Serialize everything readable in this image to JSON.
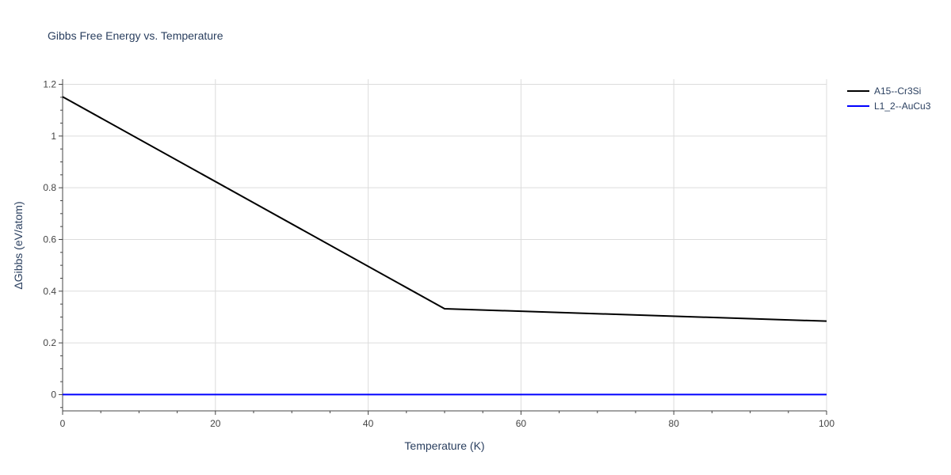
{
  "chart_data": {
    "type": "line",
    "title": "Gibbs Free Energy vs. Temperature",
    "xlabel": "Temperature (K)",
    "ylabel": "ΔGibbs (eV/atom)",
    "xlim": [
      0,
      100
    ],
    "ylim": [
      -0.063,
      1.22
    ],
    "x_ticks": [
      0,
      20,
      40,
      60,
      80,
      100
    ],
    "x_minor_ticks": [
      5,
      10,
      15,
      25,
      30,
      35,
      45,
      50,
      55,
      65,
      70,
      75,
      85,
      90,
      95
    ],
    "y_ticks": [
      0,
      0.2,
      0.4,
      0.6,
      0.8,
      1,
      1.2
    ],
    "y_minor_ticks": [
      -0.05,
      0.05,
      0.1,
      0.15,
      0.25,
      0.3,
      0.35,
      0.45,
      0.5,
      0.55,
      0.65,
      0.7,
      0.75,
      0.85,
      0.9,
      0.95,
      1.05,
      1.1,
      1.15
    ],
    "grid": true,
    "legend_position": "top-right",
    "series": [
      {
        "name": "A15--Cr3Si",
        "color": "#000000",
        "x": [
          0,
          50,
          100
        ],
        "y": [
          1.152,
          0.332,
          0.284
        ]
      },
      {
        "name": "L1_2--AuCu3",
        "color": "#0000ff",
        "x": [
          0,
          100
        ],
        "y": [
          0,
          0
        ]
      }
    ]
  }
}
